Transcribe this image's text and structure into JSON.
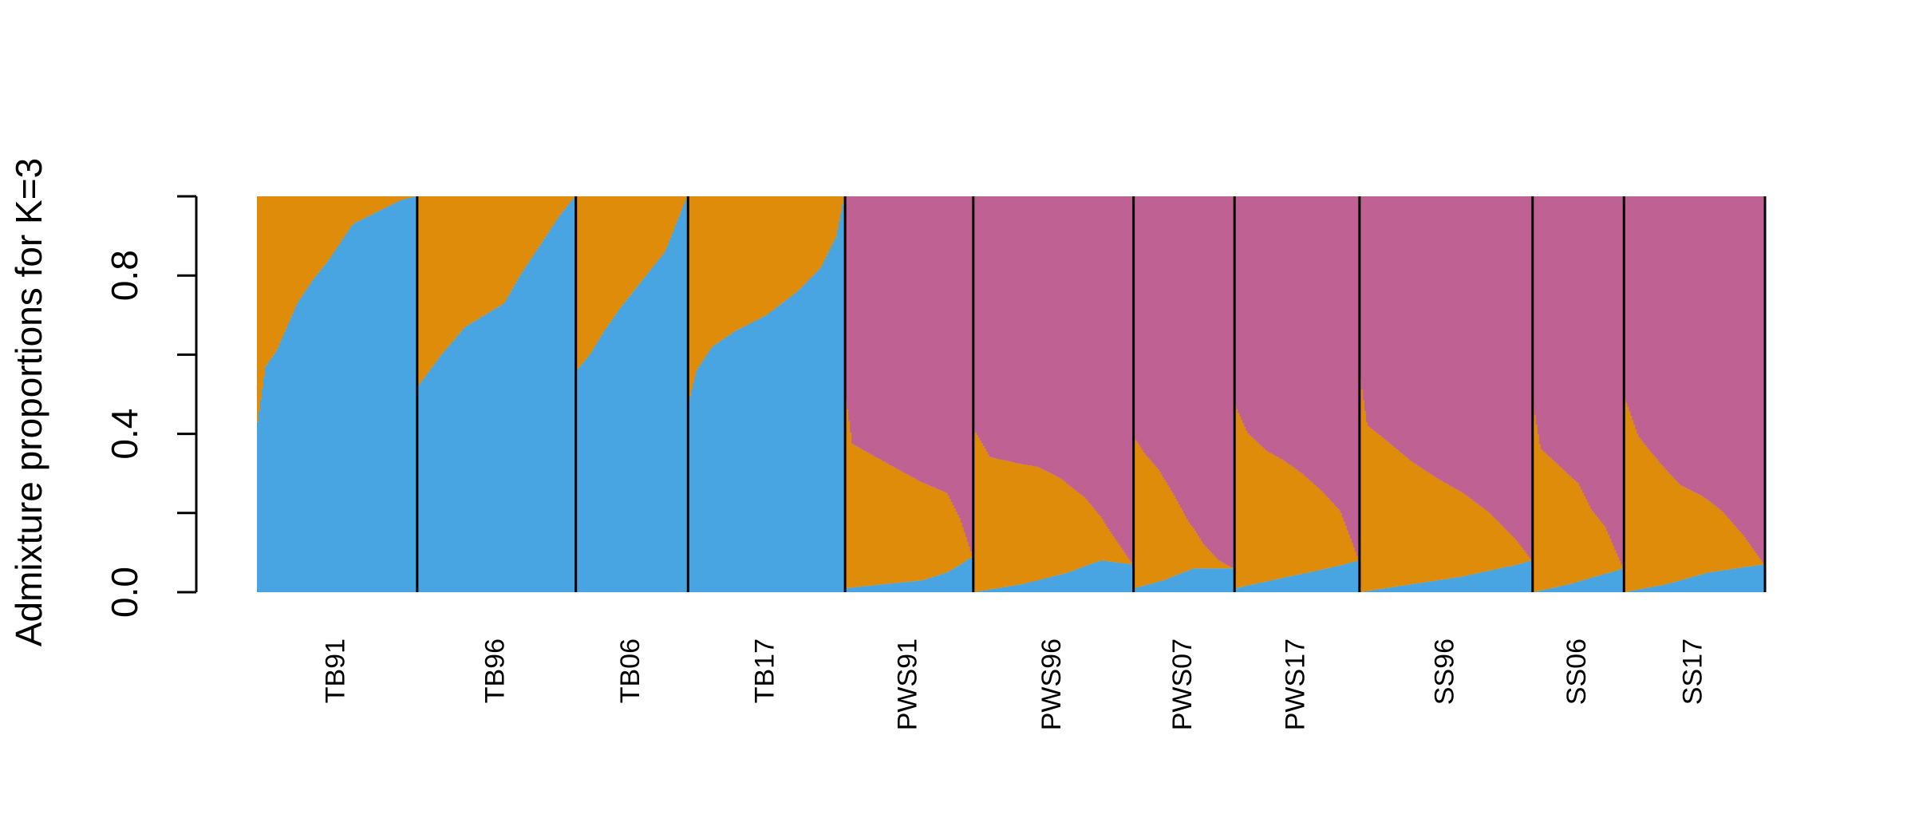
{
  "chart_data": {
    "type": "bar",
    "subtype": "stacked-admixture",
    "title": "",
    "ylabel": "Admixture proportions for K=3",
    "xlabel": "",
    "ylim": [
      0,
      1
    ],
    "yticks": [
      0.0,
      0.2,
      0.4,
      0.6,
      0.8,
      1.0
    ],
    "ytick_labels": [
      "0.0",
      "",
      "0.4",
      "",
      "0.8",
      ""
    ],
    "grid": false,
    "legend": "none",
    "component_order": [
      "blue",
      "orange",
      "pink"
    ],
    "colors": {
      "blue": "#49a4e2",
      "orange": "#df8c0a",
      "pink": "#bf6192"
    },
    "separator_color": "#000000",
    "groups": [
      {
        "label": "TB91",
        "individuals": 100,
        "blue": [
          [
            0,
            0.43
          ],
          [
            0.05,
            0.57
          ],
          [
            0.12,
            0.61
          ],
          [
            0.25,
            0.73
          ],
          [
            0.35,
            0.79
          ],
          [
            0.45,
            0.84
          ],
          [
            0.6,
            0.93
          ],
          [
            0.75,
            0.96
          ],
          [
            0.9,
            0.99
          ],
          [
            1,
            1.0
          ]
        ],
        "orange": [
          [
            0,
            0.57
          ],
          [
            0.05,
            0.43
          ],
          [
            0.12,
            0.39
          ],
          [
            0.25,
            0.27
          ],
          [
            0.35,
            0.21
          ],
          [
            0.45,
            0.16
          ],
          [
            0.6,
            0.07
          ],
          [
            0.75,
            0.04
          ],
          [
            0.9,
            0.01
          ],
          [
            1,
            0.0
          ]
        ],
        "pink": [
          [
            0,
            0
          ],
          [
            1,
            0
          ]
        ]
      },
      {
        "label": "TB96",
        "individuals": 99,
        "blue": [
          [
            0,
            0.52
          ],
          [
            0.15,
            0.6
          ],
          [
            0.3,
            0.67
          ],
          [
            0.55,
            0.73
          ],
          [
            0.65,
            0.8
          ],
          [
            0.8,
            0.89
          ],
          [
            0.9,
            0.95
          ],
          [
            1,
            1.0
          ]
        ],
        "orange": [
          [
            0,
            0.48
          ],
          [
            0.15,
            0.4
          ],
          [
            0.3,
            0.33
          ],
          [
            0.55,
            0.27
          ],
          [
            0.65,
            0.2
          ],
          [
            0.8,
            0.11
          ],
          [
            0.9,
            0.05
          ],
          [
            1,
            0.0
          ]
        ],
        "pink": [
          [
            0,
            0
          ],
          [
            1,
            0
          ]
        ]
      },
      {
        "label": "TB06",
        "individuals": 70,
        "blue": [
          [
            0,
            0.56
          ],
          [
            0.12,
            0.6
          ],
          [
            0.25,
            0.66
          ],
          [
            0.4,
            0.72
          ],
          [
            0.6,
            0.79
          ],
          [
            0.8,
            0.86
          ],
          [
            0.9,
            0.93
          ],
          [
            1,
            1.0
          ]
        ],
        "orange": [
          [
            0,
            0.44
          ],
          [
            0.12,
            0.4
          ],
          [
            0.25,
            0.34
          ],
          [
            0.4,
            0.28
          ],
          [
            0.6,
            0.21
          ],
          [
            0.8,
            0.14
          ],
          [
            0.9,
            0.07
          ],
          [
            1,
            0.0
          ]
        ],
        "pink": [
          [
            0,
            0
          ],
          [
            1,
            0
          ]
        ]
      },
      {
        "label": "TB17",
        "individuals": 98,
        "blue": [
          [
            0,
            0.48
          ],
          [
            0.05,
            0.56
          ],
          [
            0.15,
            0.62
          ],
          [
            0.3,
            0.66
          ],
          [
            0.5,
            0.7
          ],
          [
            0.7,
            0.76
          ],
          [
            0.85,
            0.82
          ],
          [
            0.95,
            0.9
          ],
          [
            1,
            1.0
          ]
        ],
        "orange": [
          [
            0,
            0.52
          ],
          [
            0.05,
            0.44
          ],
          [
            0.15,
            0.38
          ],
          [
            0.3,
            0.34
          ],
          [
            0.5,
            0.3
          ],
          [
            0.7,
            0.24
          ],
          [
            0.85,
            0.18
          ],
          [
            0.95,
            0.1
          ],
          [
            1,
            0.0
          ]
        ],
        "pink": [
          [
            0,
            0
          ],
          [
            1,
            0
          ]
        ]
      },
      {
        "label": "PWS91",
        "individuals": 80,
        "blue": [
          [
            0,
            0.01
          ],
          [
            0.3,
            0.02
          ],
          [
            0.6,
            0.03
          ],
          [
            0.8,
            0.05
          ],
          [
            1,
            0.09
          ]
        ],
        "orange": [
          [
            0,
            0.48
          ],
          [
            0.05,
            0.36
          ],
          [
            0.2,
            0.33
          ],
          [
            0.35,
            0.3
          ],
          [
            0.5,
            0.27
          ],
          [
            0.65,
            0.24
          ],
          [
            0.8,
            0.2
          ],
          [
            0.9,
            0.12
          ],
          [
            1,
            0.0
          ]
        ],
        "pink": [
          [
            0,
            0.51
          ],
          [
            0.05,
            0.62
          ],
          [
            0.2,
            0.65
          ],
          [
            0.35,
            0.68
          ],
          [
            0.5,
            0.71
          ],
          [
            0.65,
            0.74
          ],
          [
            0.8,
            0.75
          ],
          [
            0.9,
            0.83
          ],
          [
            1,
            0.91
          ]
        ]
      },
      {
        "label": "PWS96",
        "individuals": 100,
        "blue": [
          [
            0,
            0.0
          ],
          [
            0.3,
            0.02
          ],
          [
            0.6,
            0.05
          ],
          [
            0.8,
            0.08
          ],
          [
            1,
            0.07
          ]
        ],
        "orange": [
          [
            0,
            0.41
          ],
          [
            0.1,
            0.33
          ],
          [
            0.25,
            0.31
          ],
          [
            0.4,
            0.29
          ],
          [
            0.55,
            0.24
          ],
          [
            0.7,
            0.17
          ],
          [
            0.85,
            0.08
          ],
          [
            1,
            0.0
          ]
        ],
        "pink": [
          [
            0,
            0.59
          ],
          [
            0.1,
            0.65
          ],
          [
            0.25,
            0.67
          ],
          [
            0.4,
            0.69
          ],
          [
            0.55,
            0.71
          ],
          [
            0.7,
            0.75
          ],
          [
            0.85,
            0.84
          ],
          [
            1,
            0.93
          ]
        ]
      },
      {
        "label": "PWS07",
        "individuals": 63,
        "blue": [
          [
            0,
            0.01
          ],
          [
            0.3,
            0.03
          ],
          [
            0.6,
            0.06
          ],
          [
            1,
            0.06
          ]
        ],
        "orange": [
          [
            0,
            0.38
          ],
          [
            0.1,
            0.33
          ],
          [
            0.25,
            0.28
          ],
          [
            0.4,
            0.2
          ],
          [
            0.55,
            0.12
          ],
          [
            0.7,
            0.06
          ],
          [
            0.85,
            0.02
          ],
          [
            1,
            0.0
          ]
        ],
        "pink": [
          [
            0,
            0.61
          ],
          [
            0.1,
            0.64
          ],
          [
            0.25,
            0.69
          ],
          [
            0.4,
            0.74
          ],
          [
            0.55,
            0.82
          ],
          [
            0.7,
            0.88
          ],
          [
            0.85,
            0.92
          ],
          [
            1,
            0.94
          ]
        ]
      },
      {
        "label": "PWS17",
        "individuals": 78,
        "blue": [
          [
            0,
            0.01
          ],
          [
            0.3,
            0.03
          ],
          [
            0.6,
            0.05
          ],
          [
            1,
            0.08
          ]
        ],
        "orange": [
          [
            0,
            0.46
          ],
          [
            0.1,
            0.38
          ],
          [
            0.25,
            0.33
          ],
          [
            0.4,
            0.29
          ],
          [
            0.55,
            0.25
          ],
          [
            0.7,
            0.2
          ],
          [
            0.85,
            0.14
          ],
          [
            1,
            0.0
          ]
        ],
        "pink": [
          [
            0,
            0.53
          ],
          [
            0.1,
            0.59
          ],
          [
            0.25,
            0.64
          ],
          [
            0.4,
            0.66
          ],
          [
            0.55,
            0.7
          ],
          [
            0.7,
            0.75
          ],
          [
            0.85,
            0.81
          ],
          [
            1,
            0.92
          ]
        ]
      },
      {
        "label": "SS96",
        "individuals": 108,
        "blue": [
          [
            0,
            0.0
          ],
          [
            0.3,
            0.02
          ],
          [
            0.6,
            0.04
          ],
          [
            1,
            0.08
          ]
        ],
        "orange": [
          [
            0,
            0.54
          ],
          [
            0.04,
            0.42
          ],
          [
            0.15,
            0.37
          ],
          [
            0.3,
            0.31
          ],
          [
            0.45,
            0.26
          ],
          [
            0.6,
            0.21
          ],
          [
            0.75,
            0.15
          ],
          [
            0.9,
            0.07
          ],
          [
            1,
            0.0
          ]
        ],
        "pink": [
          [
            0,
            0.46
          ],
          [
            0.04,
            0.58
          ],
          [
            0.15,
            0.61
          ],
          [
            0.3,
            0.67
          ],
          [
            0.45,
            0.72
          ],
          [
            0.6,
            0.75
          ],
          [
            0.75,
            0.81
          ],
          [
            0.9,
            0.89
          ],
          [
            1,
            0.92
          ]
        ]
      },
      {
        "label": "SS06",
        "individuals": 57,
        "blue": [
          [
            0,
            0.0
          ],
          [
            0.4,
            0.02
          ],
          [
            0.7,
            0.04
          ],
          [
            1,
            0.06
          ]
        ],
        "orange": [
          [
            0,
            0.47
          ],
          [
            0.08,
            0.36
          ],
          [
            0.3,
            0.3
          ],
          [
            0.5,
            0.25
          ],
          [
            0.65,
            0.17
          ],
          [
            0.8,
            0.12
          ],
          [
            0.9,
            0.06
          ],
          [
            1,
            0.0
          ]
        ],
        "pink": [
          [
            0,
            0.53
          ],
          [
            0.08,
            0.64
          ],
          [
            0.3,
            0.68
          ],
          [
            0.5,
            0.73
          ],
          [
            0.65,
            0.79
          ],
          [
            0.8,
            0.84
          ],
          [
            0.9,
            0.9
          ],
          [
            1,
            0.94
          ]
        ]
      },
      {
        "label": "SS17",
        "individuals": 88,
        "blue": [
          [
            0,
            0.0
          ],
          [
            0.3,
            0.02
          ],
          [
            0.6,
            0.05
          ],
          [
            1,
            0.07
          ]
        ],
        "orange": [
          [
            0,
            0.49
          ],
          [
            0.1,
            0.38
          ],
          [
            0.25,
            0.31
          ],
          [
            0.4,
            0.24
          ],
          [
            0.55,
            0.2
          ],
          [
            0.7,
            0.15
          ],
          [
            0.85,
            0.08
          ],
          [
            1,
            0.0
          ]
        ],
        "pink": [
          [
            0,
            0.51
          ],
          [
            0.1,
            0.6
          ],
          [
            0.25,
            0.67
          ],
          [
            0.4,
            0.73
          ],
          [
            0.55,
            0.76
          ],
          [
            0.7,
            0.8
          ],
          [
            0.85,
            0.85
          ],
          [
            1,
            0.93
          ]
        ]
      }
    ]
  }
}
